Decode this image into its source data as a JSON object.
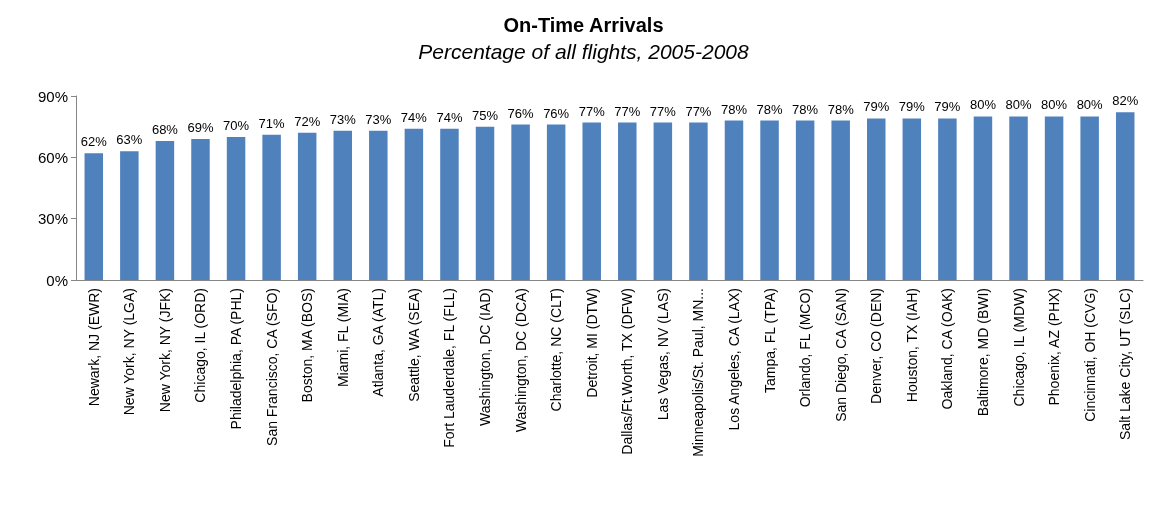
{
  "chart_data": {
    "type": "bar",
    "title": "On-Time Arrivals",
    "subtitle": "Percentage of all flights, 2005-2008",
    "categories": [
      "Newark, NJ (EWR)",
      "New York, NY (LGA)",
      "New York, NY (JFK)",
      "Chicago, IL (ORD)",
      "Philadelphia, PA (PHL)",
      "San Francisco, CA (SFO)",
      "Boston, MA (BOS)",
      "Miami, FL (MIA)",
      "Atlanta, GA (ATL)",
      "Seattle, WA (SEA)",
      "Fort Lauderdale, FL (FLL)",
      "Washington, DC (IAD)",
      "Washington, DC (DCA)",
      "Charlotte, NC (CLT)",
      "Detroit, MI (DTW)",
      "Dallas/Ft.Worth, TX (DFW)",
      "Las Vegas, NV (LAS)",
      "Minneapolis/St. Paul, MN...",
      "Los Angeles, CA (LAX)",
      "Tampa, FL (TPA)",
      "Orlando, FL (MCO)",
      "San Diego, CA (SAN)",
      "Denver, CO (DEN)",
      "Houston, TX (IAH)",
      "Oakland, CA (OAK)",
      "Baltimore, MD (BWI)",
      "Chicago, IL (MDW)",
      "Phoenix, AZ (PHX)",
      "Cincinnati, OH (CVG)",
      "Salt Lake City, UT (SLC)"
    ],
    "values": [
      62,
      63,
      68,
      69,
      70,
      71,
      72,
      73,
      73,
      74,
      74,
      75,
      76,
      76,
      77,
      77,
      77,
      77,
      78,
      78,
      78,
      78,
      79,
      79,
      79,
      80,
      80,
      80,
      80,
      82
    ],
    "value_labels": [
      "62%",
      "63%",
      "68%",
      "69%",
      "70%",
      "71%",
      "72%",
      "73%",
      "73%",
      "74%",
      "74%",
      "75%",
      "76%",
      "76%",
      "77%",
      "77%",
      "77%",
      "77%",
      "78%",
      "78%",
      "78%",
      "78%",
      "79%",
      "79%",
      "79%",
      "80%",
      "80%",
      "80%",
      "80%",
      "82%"
    ],
    "color": "#4f81bd",
    "ylim": [
      0,
      90
    ],
    "yticks": [
      {
        "value": 0,
        "label": "0%"
      },
      {
        "value": 30,
        "label": "30%"
      },
      {
        "value": 60,
        "label": "60%"
      },
      {
        "value": 90,
        "label": "90%"
      }
    ],
    "grid": false
  }
}
